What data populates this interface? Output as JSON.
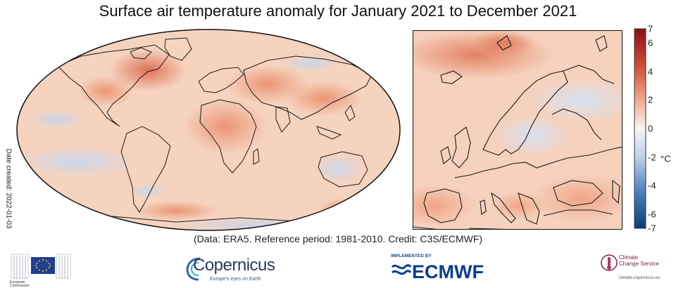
{
  "title": "Surface air temperature anomaly for January 2021 to December 2021",
  "date_created": "Date created: 2022-01-03",
  "credit": "(Data: ERA5.  Reference period: 1981-2010.  Credit: C3S/ECMWF)",
  "colorbar": {
    "unit": "°C",
    "min": -7,
    "max": 7,
    "ticks": [
      {
        "value": 7,
        "label": "7"
      },
      {
        "value": 6,
        "label": "6"
      },
      {
        "value": 4,
        "label": "4"
      },
      {
        "value": 2,
        "label": "2"
      },
      {
        "value": 0,
        "label": "0"
      },
      {
        "value": -2,
        "label": "-2"
      },
      {
        "value": -4,
        "label": "-4"
      },
      {
        "value": -6,
        "label": "-6"
      },
      {
        "value": -7,
        "label": "-7"
      }
    ],
    "colors": {
      "strong_negative": "#0a3d7a",
      "negative": "#4a7fbf",
      "weak_negative": "#c9daef",
      "neutral": "#f7f5f3",
      "weak_positive": "#f6cdb5",
      "positive": "#e27451",
      "strong_positive": "#8a0f1a"
    }
  },
  "maps": {
    "world": {
      "label": "global-map",
      "region": "World"
    },
    "europe": {
      "label": "europe-map",
      "region": "Europe"
    }
  },
  "logos": {
    "eu": {
      "caption_line1": "European",
      "caption_line2": "Commission"
    },
    "copernicus": {
      "word": "Copernicus",
      "tagline": "Europe's eyes on Earth"
    },
    "ecmwf": {
      "small": "IMPLEMENTED BY",
      "word": "ECMWF"
    },
    "c3s": {
      "line1": "Climate",
      "line2": "Change Service",
      "url": "climate.copernicus.eu"
    }
  }
}
